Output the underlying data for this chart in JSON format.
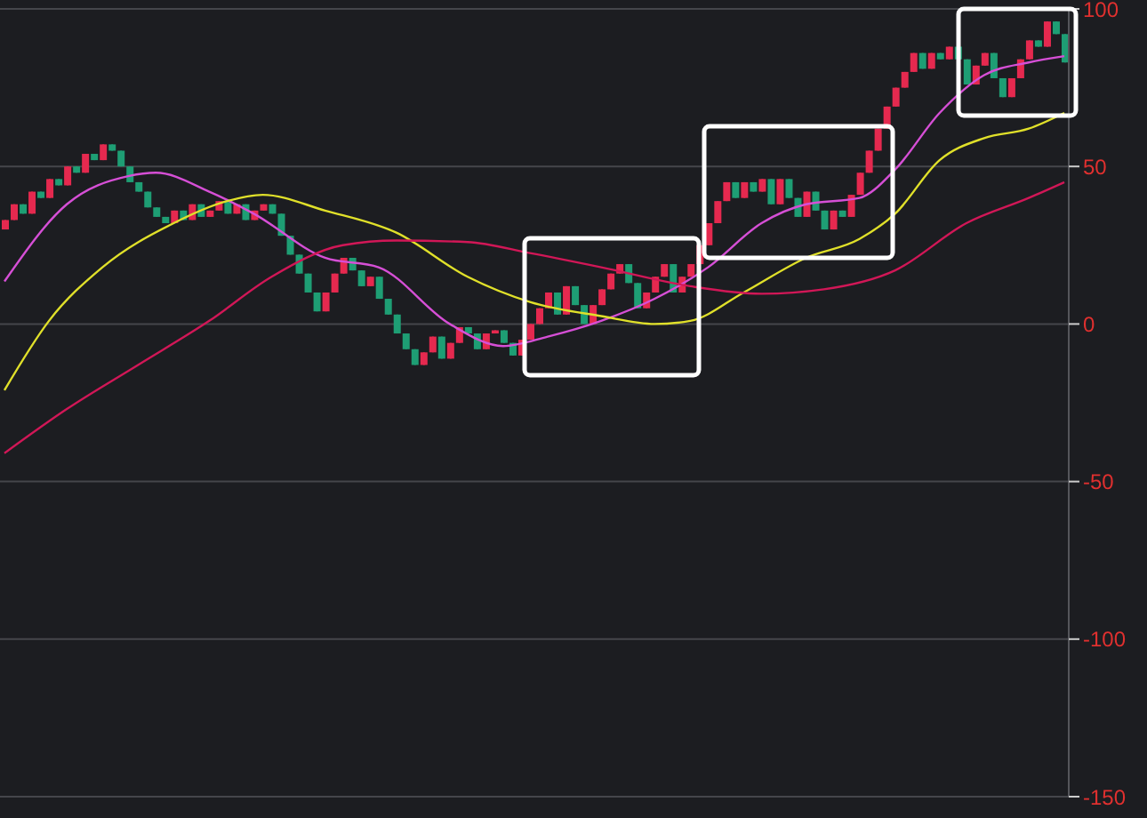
{
  "chart_data": {
    "type": "candlestick",
    "categories": [
      null,
      null,
      null,
      null,
      null,
      null,
      null,
      null,
      null,
      null,
      null,
      null,
      null,
      null,
      null,
      null,
      null,
      null,
      null,
      null,
      null,
      null,
      null,
      null,
      null,
      null,
      null,
      null,
      null,
      null,
      null,
      null,
      null,
      null,
      null,
      null,
      null,
      null,
      null,
      null,
      null,
      null,
      null,
      null,
      null,
      null,
      null,
      null,
      null,
      null,
      null,
      null,
      null,
      null,
      null,
      null,
      null,
      null,
      null,
      null,
      null,
      null,
      null,
      null,
      null,
      null,
      null,
      null,
      null,
      null,
      null,
      null,
      null,
      null,
      null,
      null,
      null,
      null,
      null,
      null,
      null,
      null,
      null,
      null,
      null,
      null,
      null,
      null,
      null,
      null,
      null,
      null,
      null,
      null,
      null,
      null,
      null,
      null,
      null,
      null,
      null,
      null,
      null,
      null,
      null,
      null,
      null,
      null,
      null,
      null,
      null,
      null,
      null,
      null,
      null,
      null,
      null,
      null,
      null,
      null
    ],
    "colors": [
      "#e5294f",
      "#e5294f",
      "#1e9e74",
      "#e5294f",
      "#1e9e74",
      "#e5294f",
      "#1e9e74",
      "#e5294f",
      "#1e9e74",
      "#e5294f",
      "#1e9e74",
      "#e5294f",
      "#1e9e74",
      "#1e9e74",
      "#1e9e74",
      "#1e9e74",
      "#1e9e74",
      "#1e9e74",
      "#1e9e74",
      "#e5294f",
      "#1e9e74",
      "#e5294f",
      "#1e9e74",
      "#e5294f",
      "#e5294f",
      "#1e9e74",
      "#e5294f",
      "#1e9e74",
      "#e5294f",
      "#e5294f",
      "#1e9e74",
      "#1e9e74",
      "#1e9e74",
      "#1e9e74",
      "#1e9e74",
      "#1e9e74",
      "#e5294f",
      "#e5294f",
      "#e5294f",
      "#1e9e74",
      "#1e9e74",
      "#e5294f",
      "#1e9e74",
      "#1e9e74",
      "#1e9e74",
      "#1e9e74",
      "#1e9e74",
      "#e5294f",
      "#e5294f",
      "#1e9e74",
      "#e5294f",
      "#e5294f",
      "#1e9e74",
      "#1e9e74",
      "#e5294f",
      "#e5294f",
      "#1e9e74",
      "#1e9e74",
      "#e5294f",
      "#e5294f",
      "#e5294f",
      "#e5294f",
      "#1e9e74",
      "#e5294f",
      "#1e9e74",
      "#1e9e74",
      "#e5294f",
      "#e5294f",
      "#e5294f",
      "#e5294f",
      "#1e9e74",
      "#1e9e74",
      "#e5294f",
      "#e5294f",
      "#e5294f",
      "#1e9e74",
      "#e5294f",
      "#e5294f",
      "#e5294f",
      "#e5294f",
      "#e5294f",
      "#e5294f",
      "#1e9e74",
      "#e5294f",
      "#1e9e74",
      "#e5294f",
      "#1e9e74",
      "#e5294f",
      "#1e9e74",
      "#1e9e74",
      "#e5294f",
      "#1e9e74",
      "#1e9e74",
      "#e5294f",
      "#1e9e74",
      "#e5294f",
      "#e5294f",
      "#e5294f",
      "#e5294f",
      "#e5294f",
      "#e5294f",
      "#e5294f",
      "#e5294f",
      "#1e9e74",
      "#e5294f",
      "#1e9e74",
      "#e5294f",
      "#1e9e74",
      "#1e9e74",
      "#e5294f",
      "#e5294f",
      "#1e9e74",
      "#1e9e74",
      "#e5294f",
      "#e5294f",
      "#e5294f",
      "#1e9e74",
      "#e5294f",
      "#1e9e74",
      "#1e9e74"
    ],
    "ohlc": [
      [
        30,
        33,
        30,
        33
      ],
      [
        33,
        38,
        33,
        38
      ],
      [
        38,
        38,
        35,
        35
      ],
      [
        35,
        42,
        35,
        42
      ],
      [
        42,
        42,
        40,
        40
      ],
      [
        40,
        46,
        40,
        46
      ],
      [
        46,
        46,
        44,
        44
      ],
      [
        44,
        50,
        44,
        50
      ],
      [
        50,
        50,
        48,
        48
      ],
      [
        48,
        54,
        48,
        54
      ],
      [
        54,
        54,
        52,
        52
      ],
      [
        52,
        57,
        52,
        57
      ],
      [
        57,
        57,
        55,
        55
      ],
      [
        55,
        55,
        50,
        50
      ],
      [
        50,
        50,
        45,
        45
      ],
      [
        45,
        45,
        42,
        42
      ],
      [
        42,
        42,
        37,
        37
      ],
      [
        37,
        37,
        34,
        34
      ],
      [
        34,
        34,
        32,
        32
      ],
      [
        32,
        36,
        32,
        36
      ],
      [
        36,
        36,
        33,
        33
      ],
      [
        33,
        38,
        33,
        38
      ],
      [
        38,
        38,
        34,
        34
      ],
      [
        34,
        36,
        34,
        36
      ],
      [
        36,
        39,
        36,
        39
      ],
      [
        39,
        39,
        35,
        35
      ],
      [
        35,
        38,
        35,
        38
      ],
      [
        38,
        38,
        33,
        33
      ],
      [
        33,
        36,
        33,
        36
      ],
      [
        36,
        38,
        36,
        38
      ],
      [
        38,
        38,
        35,
        35
      ],
      [
        35,
        35,
        28,
        28
      ],
      [
        28,
        28,
        22,
        22
      ],
      [
        22,
        22,
        16,
        16
      ],
      [
        16,
        16,
        10,
        10
      ],
      [
        10,
        10,
        4,
        4
      ],
      [
        4,
        10,
        4,
        10
      ],
      [
        10,
        16,
        10,
        16
      ],
      [
        16,
        21,
        16,
        21
      ],
      [
        21,
        21,
        17,
        17
      ],
      [
        17,
        17,
        12,
        12
      ],
      [
        12,
        15,
        12,
        15
      ],
      [
        15,
        15,
        8,
        8
      ],
      [
        8,
        8,
        3,
        3
      ],
      [
        3,
        3,
        -3,
        -3
      ],
      [
        -3,
        -3,
        -8,
        -8
      ],
      [
        -8,
        -8,
        -13,
        -13
      ],
      [
        -13,
        -9,
        -13,
        -9
      ],
      [
        -9,
        -4,
        -9,
        -4
      ],
      [
        -4,
        -4,
        -11,
        -11
      ],
      [
        -11,
        -6,
        -11,
        -6
      ],
      [
        -6,
        -1,
        -6,
        -1
      ],
      [
        -1,
        -1,
        -3,
        -3
      ],
      [
        -3,
        -3,
        -8,
        -8
      ],
      [
        -8,
        -3,
        -8,
        -3
      ],
      [
        -3,
        -2,
        -3,
        -2
      ],
      [
        -2,
        -2,
        -6,
        -6
      ],
      [
        -6,
        -6,
        -10,
        -10
      ],
      [
        -10,
        -5,
        -10,
        -5
      ],
      [
        -5,
        0,
        -5,
        0
      ],
      [
        0,
        5,
        0,
        5
      ],
      [
        5,
        10,
        5,
        10
      ],
      [
        10,
        10,
        3,
        3
      ],
      [
        3,
        12,
        3,
        12
      ],
      [
        12,
        12,
        6,
        6
      ],
      [
        6,
        6,
        0,
        0
      ],
      [
        0,
        6,
        0,
        6
      ],
      [
        6,
        11,
        6,
        11
      ],
      [
        11,
        16,
        11,
        16
      ],
      [
        16,
        19,
        16,
        19
      ],
      [
        19,
        19,
        13,
        13
      ],
      [
        13,
        13,
        5,
        5
      ],
      [
        5,
        10,
        5,
        10
      ],
      [
        10,
        15,
        10,
        15
      ],
      [
        15,
        19,
        15,
        19
      ],
      [
        19,
        19,
        10,
        10
      ],
      [
        10,
        15,
        10,
        15
      ],
      [
        15,
        19,
        15,
        19
      ],
      [
        19,
        25,
        19,
        25
      ],
      [
        25,
        32,
        25,
        32
      ],
      [
        32,
        39,
        32,
        39
      ],
      [
        39,
        45,
        39,
        45
      ],
      [
        45,
        45,
        40,
        40
      ],
      [
        40,
        45,
        40,
        45
      ],
      [
        45,
        45,
        42,
        42
      ],
      [
        42,
        46,
        42,
        46
      ],
      [
        46,
        46,
        38,
        38
      ],
      [
        38,
        46,
        38,
        46
      ],
      [
        46,
        46,
        40,
        40
      ],
      [
        40,
        40,
        34,
        34
      ],
      [
        34,
        42,
        34,
        42
      ],
      [
        42,
        42,
        36,
        36
      ],
      [
        36,
        36,
        30,
        30
      ],
      [
        30,
        36,
        30,
        36
      ],
      [
        36,
        36,
        34,
        34
      ],
      [
        34,
        41,
        34,
        41
      ],
      [
        41,
        48,
        41,
        48
      ],
      [
        48,
        55,
        48,
        55
      ],
      [
        55,
        62,
        55,
        62
      ],
      [
        62,
        69,
        62,
        69
      ],
      [
        69,
        75,
        69,
        75
      ],
      [
        75,
        80,
        75,
        80
      ],
      [
        80,
        86,
        80,
        86
      ],
      [
        86,
        86,
        81,
        81
      ],
      [
        81,
        86,
        81,
        86
      ],
      [
        86,
        86,
        84,
        84
      ],
      [
        84,
        88,
        84,
        88
      ],
      [
        88,
        88,
        84,
        84
      ],
      [
        84,
        84,
        76,
        76
      ],
      [
        76,
        82,
        76,
        82
      ],
      [
        82,
        86,
        82,
        86
      ],
      [
        86,
        86,
        78,
        78
      ],
      [
        78,
        78,
        72,
        72
      ],
      [
        72,
        78,
        72,
        78
      ],
      [
        78,
        84,
        78,
        84
      ],
      [
        84,
        90,
        84,
        90
      ],
      [
        90,
        90,
        88,
        88
      ],
      [
        88,
        96,
        88,
        96
      ],
      [
        96,
        96,
        92,
        92
      ],
      [
        92,
        92,
        83,
        83
      ]
    ],
    "series": [
      {
        "type": "line",
        "color": "#d64fd6",
        "values": [
          13.5,
          null,
          null,
          null,
          null,
          null,
          null,
          38,
          null,
          null,
          null,
          null,
          null,
          null,
          47,
          null,
          null,
          48,
          null,
          null,
          null,
          null,
          null,
          42,
          null,
          null,
          null,
          null,
          35,
          null,
          null,
          null,
          null,
          null,
          null,
          null,
          21,
          null,
          null,
          null,
          null,
          null,
          18,
          null,
          null,
          null,
          null,
          null,
          null,
          null,
          0,
          null,
          null,
          null,
          null,
          null,
          -7,
          null,
          null,
          null,
          null,
          -4,
          null,
          null,
          null,
          null,
          null,
          1,
          null,
          null,
          null,
          null,
          null,
          8,
          null,
          null,
          null,
          null,
          null,
          18,
          null,
          null,
          null,
          null,
          null,
          32,
          null,
          null,
          null,
          null,
          38,
          null,
          null,
          null,
          null,
          null,
          40,
          null,
          null,
          null,
          49,
          null,
          null,
          null,
          null,
          67,
          null,
          null,
          null,
          null,
          79,
          null,
          null,
          null,
          null,
          83,
          null,
          null,
          null,
          85
        ]
      },
      {
        "type": "line",
        "color": "#e0e02a",
        "values": [
          -21,
          null,
          null,
          null,
          null,
          1,
          null,
          null,
          null,
          null,
          null,
          18,
          null,
          null,
          null,
          null,
          null,
          null,
          null,
          32,
          null,
          null,
          null,
          null,
          null,
          39,
          null,
          null,
          null,
          41,
          null,
          null,
          null,
          null,
          null,
          null,
          36,
          null,
          null,
          null,
          null,
          null,
          null,
          null,
          29,
          null,
          null,
          null,
          null,
          null,
          null,
          null,
          15,
          null,
          null,
          null,
          null,
          null,
          null,
          7,
          null,
          null,
          null,
          null,
          null,
          null,
          null,
          2.5,
          null,
          null,
          null,
          null,
          null,
          0,
          null,
          null,
          null,
          1,
          null,
          null,
          null,
          null,
          null,
          10,
          null,
          null,
          null,
          null,
          null,
          null,
          21,
          null,
          null,
          null,
          null,
          null,
          27,
          null,
          null,
          null,
          35,
          null,
          null,
          null,
          null,
          52,
          null,
          null,
          null,
          null,
          59,
          null,
          null,
          null,
          null,
          62,
          null,
          null,
          null,
          67
        ]
      },
      {
        "type": "line",
        "color": "#d11757",
        "values": [
          -41,
          null,
          null,
          null,
          null,
          null,
          null,
          -27,
          null,
          null,
          null,
          null,
          null,
          null,
          null,
          -13,
          null,
          null,
          null,
          null,
          null,
          null,
          null,
          1,
          null,
          null,
          null,
          null,
          null,
          null,
          15,
          null,
          null,
          null,
          null,
          null,
          null,
          null,
          25,
          null,
          null,
          null,
          null,
          null,
          26.5,
          null,
          null,
          null,
          null,
          null,
          null,
          null,
          26,
          null,
          null,
          null,
          null,
          null,
          null,
          22.5,
          null,
          null,
          null,
          null,
          null,
          null,
          null,
          18,
          null,
          null,
          null,
          null,
          null,
          null,
          null,
          null,
          null,
          12,
          null,
          null,
          null,
          null,
          null,
          null,
          null,
          9.6,
          null,
          null,
          null,
          null,
          null,
          null,
          11,
          null,
          null,
          null,
          null,
          null,
          null,
          null,
          17,
          null,
          null,
          null,
          null,
          null,
          null,
          null,
          32,
          null,
          null,
          null,
          null,
          null,
          null,
          40,
          null,
          null,
          null,
          45
        ]
      }
    ],
    "ylim": [
      -150,
      100
    ],
    "yticks": [
      100,
      50,
      0,
      -50,
      -100,
      -150
    ],
    "grid": "y",
    "tick_labels": "y",
    "marker": "none",
    "line_style": "solid"
  }
}
